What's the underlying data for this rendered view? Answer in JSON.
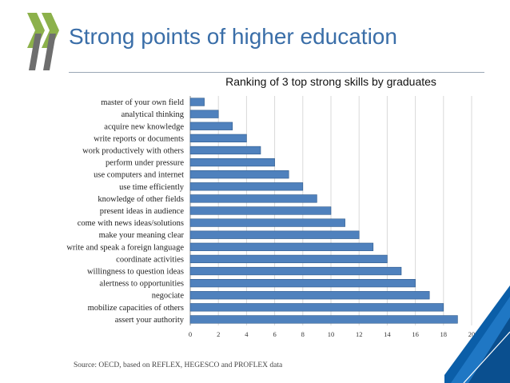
{
  "slide": {
    "title": "Strong points of higher education",
    "source": "Source: OECD, based on REFLEX, HEGESCO and PROFLEX data"
  },
  "colors": {
    "title": "#3a6ea8",
    "bar_fill": "#4f81bd",
    "bar_stroke": "#2f5a8c",
    "logo_green": "#8cb14b",
    "logo_gray": "#6e6e6e",
    "corner_blue": "#0b5ea8"
  },
  "chart_data": {
    "type": "bar",
    "orientation": "horizontal",
    "title": "Ranking of 3 top strong skills by graduates",
    "categories": [
      "master of your own field",
      "analytical thinking",
      "acquire new knowledge",
      "write reports or documents",
      "work productively with others",
      "perform under pressure",
      "use computers and internet",
      "use time efficiently",
      "knowledge of other fields",
      "present ideas in audience",
      "come with news ideas/solutions",
      "make your meaning clear",
      "write and speak a foreign language",
      "coordinate activities",
      "willingness to question ideas",
      "alertness to opportunities",
      "negociate",
      "mobilize capacities of others",
      "assert your authority"
    ],
    "values": [
      1,
      2,
      3,
      4,
      5,
      6,
      7,
      8,
      9,
      10,
      11,
      12,
      13,
      14,
      15,
      16,
      17,
      18,
      19
    ],
    "xlim": [
      0,
      20
    ],
    "xticks": [
      "0",
      "2",
      "4",
      "6",
      "8",
      "10",
      "12",
      "14",
      "16",
      "18",
      "20"
    ],
    "grid": true,
    "legend": "none"
  }
}
